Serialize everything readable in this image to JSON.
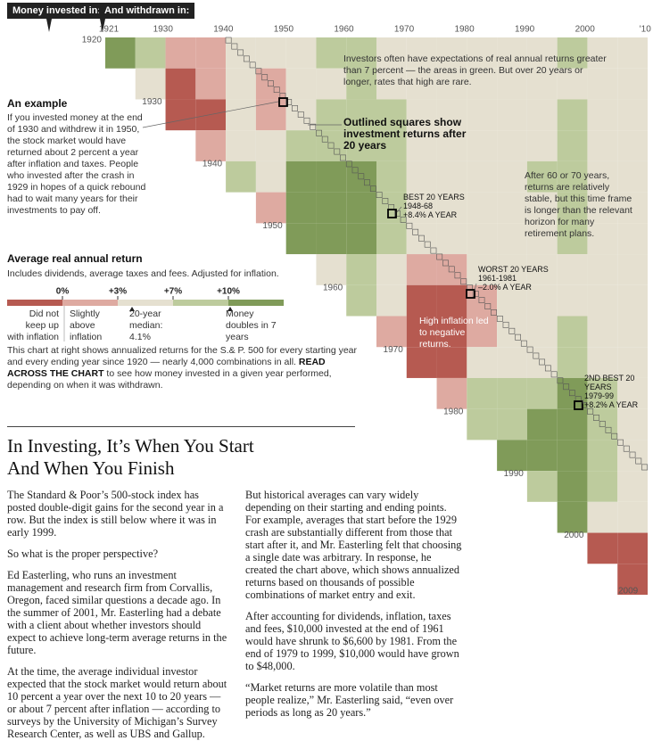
{
  "header": {
    "tabs": [
      "Money invested in:",
      "And withdrawn in:"
    ]
  },
  "chart_data": {
    "type": "heatmap",
    "xlim": [
      1921,
      2011
    ],
    "ylim": [
      1920,
      2010
    ],
    "xticks": [
      1921,
      1930,
      1940,
      1950,
      1960,
      1970,
      1980,
      1990,
      2000,
      {
        "value": 2010,
        "label": "'10"
      }
    ],
    "yticks": [
      1920,
      1930,
      1940,
      1950,
      1960,
      1970,
      1980,
      1990,
      2000,
      2009
    ],
    "rows": [
      1920,
      1925,
      1930,
      1935,
      1940,
      1945,
      1950,
      1955,
      1960,
      1965,
      1970,
      1975,
      1980,
      1985,
      1990,
      1995,
      2000,
      2005
    ],
    "columns": [
      1925,
      1930,
      1935,
      1940,
      1945,
      1950,
      1955,
      1960,
      1965,
      1970,
      1975,
      1980,
      1985,
      1990,
      1995,
      2000,
      2005,
      2010
    ],
    "values": [
      [
        12,
        8,
        2,
        2,
        5,
        4,
        6,
        7,
        7,
        6,
        5,
        5,
        5,
        6,
        6,
        7,
        6,
        6
      ],
      [
        4,
        -3,
        0,
        3,
        2,
        5,
        6,
        7,
        6,
        5,
        4,
        5,
        5,
        6,
        6,
        6,
        5
      ],
      [
        -2,
        -1,
        3,
        2,
        6,
        7,
        8,
        7,
        5,
        5,
        5,
        6,
        6,
        7,
        6,
        6
      ],
      [
        0,
        4,
        3,
        7,
        9,
        9,
        7,
        5,
        5,
        5,
        6,
        6,
        7,
        6,
        6
      ],
      [
        8,
        6,
        11,
        10,
        10,
        8,
        6,
        5,
        6,
        6,
        7,
        7,
        6,
        6
      ],
      [
        2,
        12,
        11,
        10,
        8,
        5,
        4,
        5,
        6,
        6,
        7,
        6,
        6
      ],
      [
        20,
        13,
        11,
        8,
        4,
        3,
        4,
        5,
        6,
        7,
        6,
        5
      ],
      [
        6,
        7,
        5,
        1,
        1,
        3,
        4,
        5,
        6,
        5,
        5
      ],
      [
        8,
        4,
        -1,
        -1,
        2,
        4,
        5,
        6,
        5,
        4
      ],
      [
        0,
        -4,
        -2,
        2,
        4,
        5,
        7,
        5,
        4
      ],
      [
        -5,
        -2,
        3,
        5,
        6,
        8,
        6,
        4
      ],
      [
        2,
        7,
        8,
        9,
        11,
        8,
        6
      ],
      [
        8,
        9,
        10,
        12,
        8,
        5
      ],
      [
        10,
        11,
        14,
        8,
        5
      ],
      [
        9,
        15,
        8,
        4
      ],
      [
        20,
        6,
        3
      ],
      [
        -3,
        -4
      ],
      [
        -5
      ]
    ],
    "legend": {
      "title": "Average real annual return",
      "subtitle": "Includes dividends, average taxes and fees. Adjusted for inflation.",
      "ticks": [
        {
          "value": 0,
          "label": "0%"
        },
        {
          "value": 3,
          "label": "+3%"
        },
        {
          "value": 7,
          "label": "+7%"
        },
        {
          "value": 10,
          "label": "+10%"
        }
      ],
      "colors": [
        "#b65a51",
        "#deaaa1",
        "#e5e0d0",
        "#bdcb9d",
        "#809b59"
      ],
      "descriptions": [
        "Did not keep up with inflation",
        "Slightly above inflation",
        "20-year median: 4.1%",
        "Money doubles in 7 years"
      ]
    },
    "annotations": {
      "intro": "Investors often have expectations of real annual returns greater than 7 percent — the areas in green. But over 20 years or longer, rates that high are rare.",
      "outlined": "Outlined squares show investment returns after 20 years",
      "long_term": "After 60 or 70 years, returns are relatively stable, but this time frame is longer than the relevant horizon for many retirement plans.",
      "best": [
        "BEST 20 YEARS",
        "1948-68",
        "+8.4% A YEAR"
      ],
      "worst": [
        "WORST 20 YEARS",
        "1961-1981",
        "–2.0% A YEAR"
      ],
      "inflation": "High inflation led to negative returns.",
      "second_best": [
        "2ND BEST 20 YEARS",
        "1979-99",
        "+8.2% A YEAR"
      ]
    }
  },
  "sidebar": {
    "example_title": "An example",
    "example_text": "If you invested money at the end of 1930 and withdrew it in 1950, the stock market would have returned about 2 percent a year after inflation and taxes. People who invested after the crash in 1929 in hopes of a quick rebound had to wait many years for their investments to pay off.",
    "explain": [
      "This chart at right shows annualized returns for the S.& P. 500 for every starting year and every ending year since 1920 — nearly 4,000 combinations in all. ",
      "READ ACROSS THE CHART",
      " to see how money invested in a given year performed, depending on when it was withdrawn."
    ]
  },
  "article": {
    "headline": "In Investing, It’s When You Start And When You Finish",
    "left_column": [
      "The Standard & Poor’s 500-stock index has posted double-digit gains for the second year in a row. But the index is still below where it was in early 1999.",
      "So what is the proper perspective?",
      "Ed Easterling, who runs an investment management and research firm from Corvallis, Oregon, faced similar questions a decade ago. In the summer of 2001, Mr. Easterling had a debate with a client about whether investors should expect to achieve long-term average returns in the future.",
      "At the time, the average individual investor expected that the stock market would return about 10 percent a year over the next 10 to 20 years — or about 7 percent after inflation — according to surveys by the University of Michigan’s Survey Research Center, as well as UBS and Gallup."
    ],
    "right_column": [
      "But historical averages can vary widely depending on their starting and ending points. For example, averages that start before the 1929 crash are substantially different from those that start after it, and Mr. Easterling felt that choosing a single date was arbitrary. In response, he created the chart above, which shows annualized returns based on thousands of possible combinations of market entry and exit.",
      "After accounting for dividends, inflation, taxes and fees, $10,000 invested at the end of 1961 would have shrunk to $6,600 by 1981. From the end of 1979 to 1999, $10,000 would have grown to $48,000.",
      "“Market returns are more volatile than most people realize,” Mr. Easterling said, “even over periods as long as 20 years.”"
    ]
  }
}
